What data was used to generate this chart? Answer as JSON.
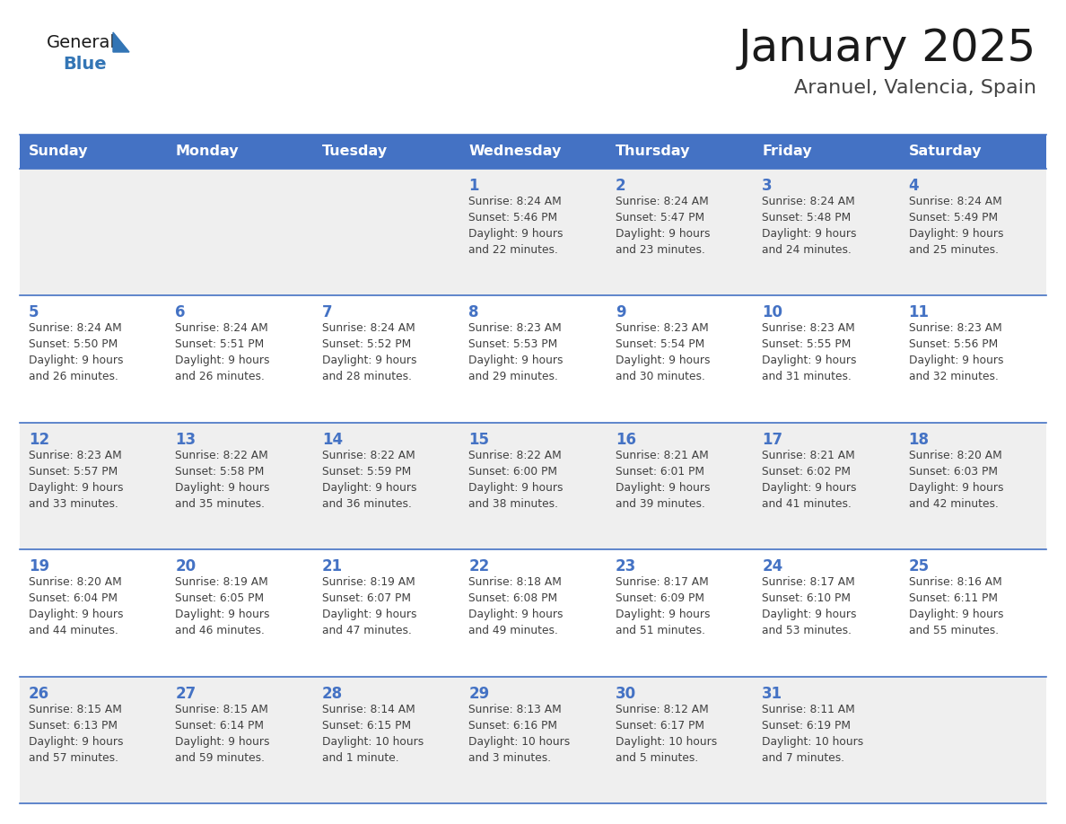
{
  "title": "January 2025",
  "subtitle": "Aranuel, Valencia, Spain",
  "days_of_week": [
    "Sunday",
    "Monday",
    "Tuesday",
    "Wednesday",
    "Thursday",
    "Friday",
    "Saturday"
  ],
  "header_bg_color": "#4472C4",
  "header_text_color": "#FFFFFF",
  "row_bg_colors": [
    "#EFEFEF",
    "#FFFFFF",
    "#EFEFEF",
    "#FFFFFF",
    "#EFEFEF"
  ],
  "date_color": "#4472C4",
  "cell_text_color": "#404040",
  "line_color": "#4472C4",
  "title_color": "#1a1a1a",
  "subtitle_color": "#444444",
  "logo_general_color": "#1a1a1a",
  "logo_blue_color": "#3375b5",
  "logo_triangle_color": "#3375b5",
  "calendar_data": [
    [
      {
        "day": null,
        "info": ""
      },
      {
        "day": null,
        "info": ""
      },
      {
        "day": null,
        "info": ""
      },
      {
        "day": 1,
        "info": "Sunrise: 8:24 AM\nSunset: 5:46 PM\nDaylight: 9 hours\nand 22 minutes."
      },
      {
        "day": 2,
        "info": "Sunrise: 8:24 AM\nSunset: 5:47 PM\nDaylight: 9 hours\nand 23 minutes."
      },
      {
        "day": 3,
        "info": "Sunrise: 8:24 AM\nSunset: 5:48 PM\nDaylight: 9 hours\nand 24 minutes."
      },
      {
        "day": 4,
        "info": "Sunrise: 8:24 AM\nSunset: 5:49 PM\nDaylight: 9 hours\nand 25 minutes."
      }
    ],
    [
      {
        "day": 5,
        "info": "Sunrise: 8:24 AM\nSunset: 5:50 PM\nDaylight: 9 hours\nand 26 minutes."
      },
      {
        "day": 6,
        "info": "Sunrise: 8:24 AM\nSunset: 5:51 PM\nDaylight: 9 hours\nand 26 minutes."
      },
      {
        "day": 7,
        "info": "Sunrise: 8:24 AM\nSunset: 5:52 PM\nDaylight: 9 hours\nand 28 minutes."
      },
      {
        "day": 8,
        "info": "Sunrise: 8:23 AM\nSunset: 5:53 PM\nDaylight: 9 hours\nand 29 minutes."
      },
      {
        "day": 9,
        "info": "Sunrise: 8:23 AM\nSunset: 5:54 PM\nDaylight: 9 hours\nand 30 minutes."
      },
      {
        "day": 10,
        "info": "Sunrise: 8:23 AM\nSunset: 5:55 PM\nDaylight: 9 hours\nand 31 minutes."
      },
      {
        "day": 11,
        "info": "Sunrise: 8:23 AM\nSunset: 5:56 PM\nDaylight: 9 hours\nand 32 minutes."
      }
    ],
    [
      {
        "day": 12,
        "info": "Sunrise: 8:23 AM\nSunset: 5:57 PM\nDaylight: 9 hours\nand 33 minutes."
      },
      {
        "day": 13,
        "info": "Sunrise: 8:22 AM\nSunset: 5:58 PM\nDaylight: 9 hours\nand 35 minutes."
      },
      {
        "day": 14,
        "info": "Sunrise: 8:22 AM\nSunset: 5:59 PM\nDaylight: 9 hours\nand 36 minutes."
      },
      {
        "day": 15,
        "info": "Sunrise: 8:22 AM\nSunset: 6:00 PM\nDaylight: 9 hours\nand 38 minutes."
      },
      {
        "day": 16,
        "info": "Sunrise: 8:21 AM\nSunset: 6:01 PM\nDaylight: 9 hours\nand 39 minutes."
      },
      {
        "day": 17,
        "info": "Sunrise: 8:21 AM\nSunset: 6:02 PM\nDaylight: 9 hours\nand 41 minutes."
      },
      {
        "day": 18,
        "info": "Sunrise: 8:20 AM\nSunset: 6:03 PM\nDaylight: 9 hours\nand 42 minutes."
      }
    ],
    [
      {
        "day": 19,
        "info": "Sunrise: 8:20 AM\nSunset: 6:04 PM\nDaylight: 9 hours\nand 44 minutes."
      },
      {
        "day": 20,
        "info": "Sunrise: 8:19 AM\nSunset: 6:05 PM\nDaylight: 9 hours\nand 46 minutes."
      },
      {
        "day": 21,
        "info": "Sunrise: 8:19 AM\nSunset: 6:07 PM\nDaylight: 9 hours\nand 47 minutes."
      },
      {
        "day": 22,
        "info": "Sunrise: 8:18 AM\nSunset: 6:08 PM\nDaylight: 9 hours\nand 49 minutes."
      },
      {
        "day": 23,
        "info": "Sunrise: 8:17 AM\nSunset: 6:09 PM\nDaylight: 9 hours\nand 51 minutes."
      },
      {
        "day": 24,
        "info": "Sunrise: 8:17 AM\nSunset: 6:10 PM\nDaylight: 9 hours\nand 53 minutes."
      },
      {
        "day": 25,
        "info": "Sunrise: 8:16 AM\nSunset: 6:11 PM\nDaylight: 9 hours\nand 55 minutes."
      }
    ],
    [
      {
        "day": 26,
        "info": "Sunrise: 8:15 AM\nSunset: 6:13 PM\nDaylight: 9 hours\nand 57 minutes."
      },
      {
        "day": 27,
        "info": "Sunrise: 8:15 AM\nSunset: 6:14 PM\nDaylight: 9 hours\nand 59 minutes."
      },
      {
        "day": 28,
        "info": "Sunrise: 8:14 AM\nSunset: 6:15 PM\nDaylight: 10 hours\nand 1 minute."
      },
      {
        "day": 29,
        "info": "Sunrise: 8:13 AM\nSunset: 6:16 PM\nDaylight: 10 hours\nand 3 minutes."
      },
      {
        "day": 30,
        "info": "Sunrise: 8:12 AM\nSunset: 6:17 PM\nDaylight: 10 hours\nand 5 minutes."
      },
      {
        "day": 31,
        "info": "Sunrise: 8:11 AM\nSunset: 6:19 PM\nDaylight: 10 hours\nand 7 minutes."
      },
      {
        "day": null,
        "info": ""
      }
    ]
  ]
}
